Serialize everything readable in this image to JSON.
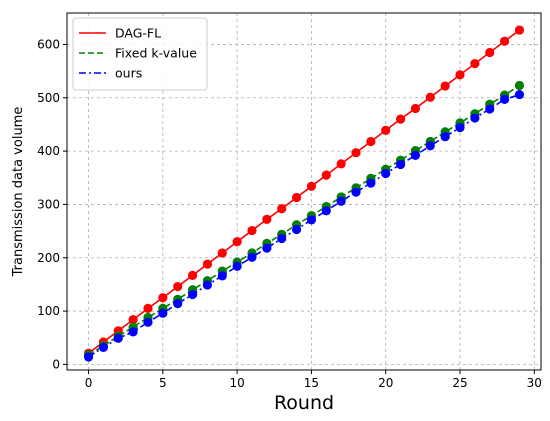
{
  "chart_data": {
    "type": "line",
    "title": "",
    "xlabel": "Round",
    "ylabel": "Transmission data volume",
    "xlim": [
      -1.45,
      30.45
    ],
    "ylim": [
      -10.5,
      659
    ],
    "xticks": [
      0,
      5,
      10,
      15,
      20,
      25,
      30
    ],
    "yticks": [
      0,
      100,
      200,
      300,
      400,
      500,
      600
    ],
    "grid": true,
    "legend_position": "top-left",
    "x": [
      0,
      1,
      2,
      3,
      4,
      5,
      6,
      7,
      8,
      9,
      10,
      11,
      12,
      13,
      14,
      15,
      16,
      17,
      18,
      19,
      20,
      21,
      22,
      23,
      24,
      25,
      26,
      27,
      28,
      29
    ],
    "series": [
      {
        "name": "DAG-FL",
        "color": "#ff0000",
        "line_style": "solid",
        "values": [
          21,
          42,
          63,
          84,
          105,
          125,
          146,
          167,
          188,
          209,
          230,
          251,
          272,
          292,
          313,
          334,
          355,
          376,
          397,
          418,
          439,
          460,
          480,
          501,
          522,
          543,
          564,
          585,
          606,
          627
        ]
      },
      {
        "name": "Fixed k-value",
        "color": "#008000",
        "line_style": "dashed",
        "values": [
          18,
          35,
          53,
          70,
          88,
          105,
          122,
          140,
          157,
          175,
          192,
          209,
          227,
          244,
          262,
          279,
          296,
          314,
          331,
          349,
          366,
          383,
          401,
          418,
          436,
          453,
          470,
          488,
          505,
          523
        ]
      },
      {
        "name": "ours",
        "color": "#0000ff",
        "line_style": "dashdot",
        "values": [
          14,
          32,
          49,
          61,
          79,
          96,
          114,
          131,
          149,
          166,
          184,
          201,
          218,
          236,
          253,
          271,
          288,
          306,
          323,
          340,
          358,
          375,
          392,
          410,
          427,
          444,
          462,
          479,
          497,
          506
        ]
      }
    ]
  }
}
